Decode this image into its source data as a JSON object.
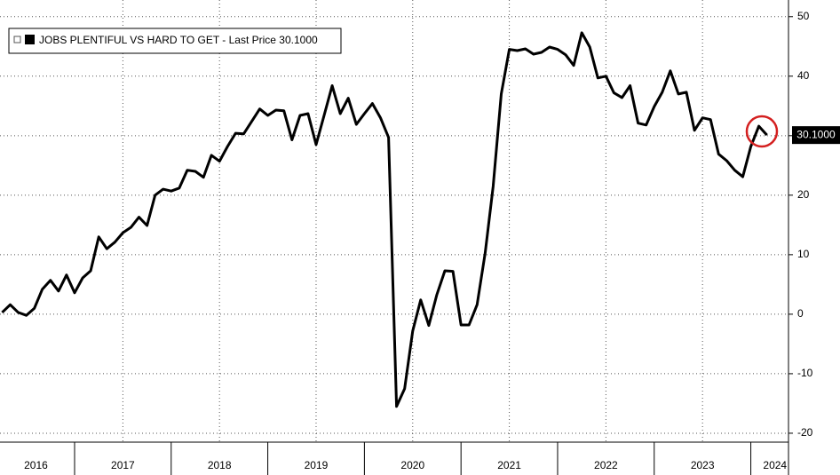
{
  "chart_data": {
    "type": "line",
    "series": [
      {
        "name": "JOBS PLENTIFUL VS HARD TO GET - Last Price 30.1000",
        "color": "#000000",
        "values": [
          0.3,
          1.6,
          0.3,
          -0.2,
          1.0,
          4.2,
          5.7,
          3.9,
          6.6,
          3.6,
          6.1,
          7.3,
          13.0,
          11.0,
          12.1,
          13.7,
          14.6,
          16.3,
          14.9,
          20.0,
          21.0,
          20.7,
          21.2,
          24.2,
          24.0,
          23.0,
          26.7,
          25.7,
          28.2,
          30.4,
          30.3,
          32.4,
          34.5,
          33.4,
          34.3,
          34.2,
          29.3,
          33.4,
          33.7,
          28.5,
          33.4,
          38.4,
          33.7,
          36.3,
          31.9,
          33.7,
          35.4,
          33.0,
          29.7,
          -15.5,
          -12.5,
          -2.8,
          2.4,
          -1.9,
          3.3,
          7.3,
          7.2,
          -1.8,
          -1.8,
          1.6,
          10.3,
          21.5,
          37.0,
          44.5,
          44.3,
          44.6,
          43.7,
          44.0,
          44.9,
          44.5,
          43.6,
          41.8,
          47.3,
          44.9,
          39.7,
          40.0,
          37.2,
          36.4,
          38.4,
          32.1,
          31.8,
          34.9,
          37.3,
          40.9,
          37.0,
          37.3,
          30.9,
          33.0,
          32.7,
          26.9,
          25.8,
          24.2,
          23.1,
          28.2,
          31.6,
          30.1
        ]
      }
    ],
    "x_start": 2016.25,
    "x_step": 0.0833333,
    "last_price_label": "30.1000",
    "xlim": [
      2016.228,
      2024.39
    ],
    "xticks": [
      {
        "value": 2016.6,
        "label": "2016"
      },
      {
        "value": 2017.5,
        "label": "2017"
      },
      {
        "value": 2018.5,
        "label": "2018"
      },
      {
        "value": 2019.5,
        "label": "2019"
      },
      {
        "value": 2020.5,
        "label": "2020"
      },
      {
        "value": 2021.5,
        "label": "2021"
      },
      {
        "value": 2022.5,
        "label": "2022"
      },
      {
        "value": 2023.5,
        "label": "2023"
      },
      {
        "value": 2024.25,
        "label": "2024"
      }
    ],
    "xticks_minor": [
      2017,
      2018,
      2019,
      2020,
      2021,
      2022,
      2023,
      2024
    ],
    "ylim": [
      -21.5,
      52.8
    ],
    "yticks": [
      50,
      40,
      30,
      20,
      10,
      0,
      -10,
      -20
    ],
    "grid": true
  }
}
